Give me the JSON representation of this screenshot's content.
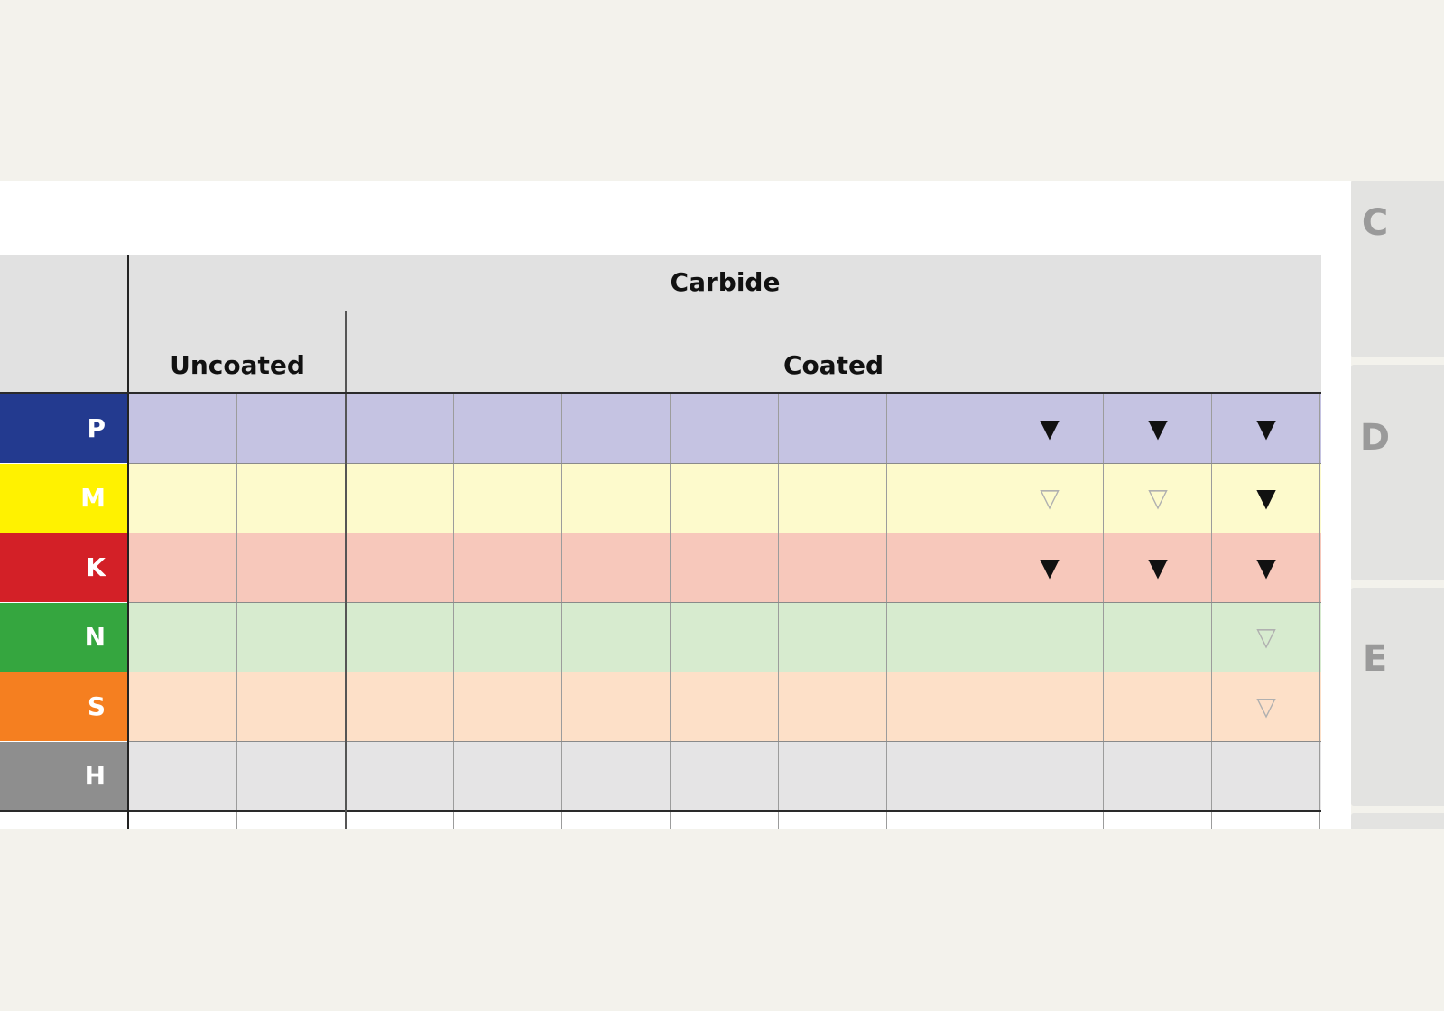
{
  "header": {
    "group_label": "Carbide",
    "uncoated_label": "Uncoated",
    "coated_label": "Coated"
  },
  "side_tabs": [
    "C",
    "D",
    "E"
  ],
  "materials": [
    {
      "code": "P",
      "color": "#233a8f",
      "band": "#c5c3e2",
      "marks": [
        "",
        "",
        "",
        "",
        "",
        "",
        "",
        "",
        "filled",
        "filled",
        "filled"
      ]
    },
    {
      "code": "M",
      "color": "#fff200",
      "band": "#fdfacc",
      "marks": [
        "",
        "",
        "",
        "",
        "",
        "",
        "",
        "",
        "hollow",
        "hollow",
        "filled"
      ]
    },
    {
      "code": "K",
      "color": "#d32027",
      "band": "#f7c8bb",
      "marks": [
        "",
        "",
        "",
        "",
        "",
        "",
        "",
        "",
        "filled",
        "filled",
        "filled"
      ]
    },
    {
      "code": "N",
      "color": "#35a63f",
      "band": "#d7ebcf",
      "marks": [
        "",
        "",
        "",
        "",
        "",
        "",
        "",
        "",
        "",
        "",
        "hollow"
      ]
    },
    {
      "code": "S",
      "color": "#f57f20",
      "band": "#fde0c8",
      "marks": [
        "",
        "",
        "",
        "",
        "",
        "",
        "",
        "",
        "",
        "",
        "hollow"
      ]
    },
    {
      "code": "H",
      "color": "#8e8e8e",
      "band": "#e5e4e5",
      "marks": [
        "",
        "",
        "",
        "",
        "",
        "",
        "",
        "",
        "",
        "",
        ""
      ]
    }
  ],
  "legend": {
    "filled_symbol": "▼",
    "hollow_symbol": "▽"
  }
}
